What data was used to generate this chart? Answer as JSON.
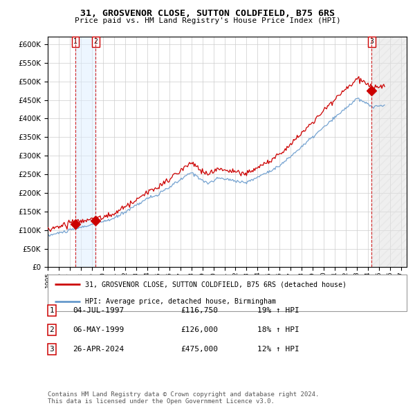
{
  "title": "31, GROSVENOR CLOSE, SUTTON COLDFIELD, B75 6RS",
  "subtitle": "Price paid vs. HM Land Registry's House Price Index (HPI)",
  "legend_line1": "31, GROSVENOR CLOSE, SUTTON COLDFIELD, B75 6RS (detached house)",
  "legend_line2": "HPI: Average price, detached house, Birmingham",
  "table": [
    {
      "num": "1",
      "date": "04-JUL-1997",
      "price": "£116,750",
      "hpi": "19% ↑ HPI"
    },
    {
      "num": "2",
      "date": "06-MAY-1999",
      "price": "£126,000",
      "hpi": "18% ↑ HPI"
    },
    {
      "num": "3",
      "date": "26-APR-2024",
      "price": "£475,000",
      "hpi": "12% ↑ HPI"
    }
  ],
  "footer": "Contains HM Land Registry data © Crown copyright and database right 2024.\nThis data is licensed under the Open Government Licence v3.0.",
  "sale1_date": 1997.5,
  "sale1_price": 116750,
  "sale2_date": 1999.35,
  "sale2_price": 126000,
  "sale3_date": 2024.32,
  "sale3_price": 475000,
  "vline1": 1997.5,
  "vline2": 1999.35,
  "vline3": 2024.32,
  "ylim": [
    0,
    620000
  ],
  "xlim_start": 1995.0,
  "xlim_end": 2027.5,
  "red_color": "#cc0000",
  "blue_color": "#6699cc",
  "bg_color": "#ffffff",
  "grid_color": "#cccccc"
}
